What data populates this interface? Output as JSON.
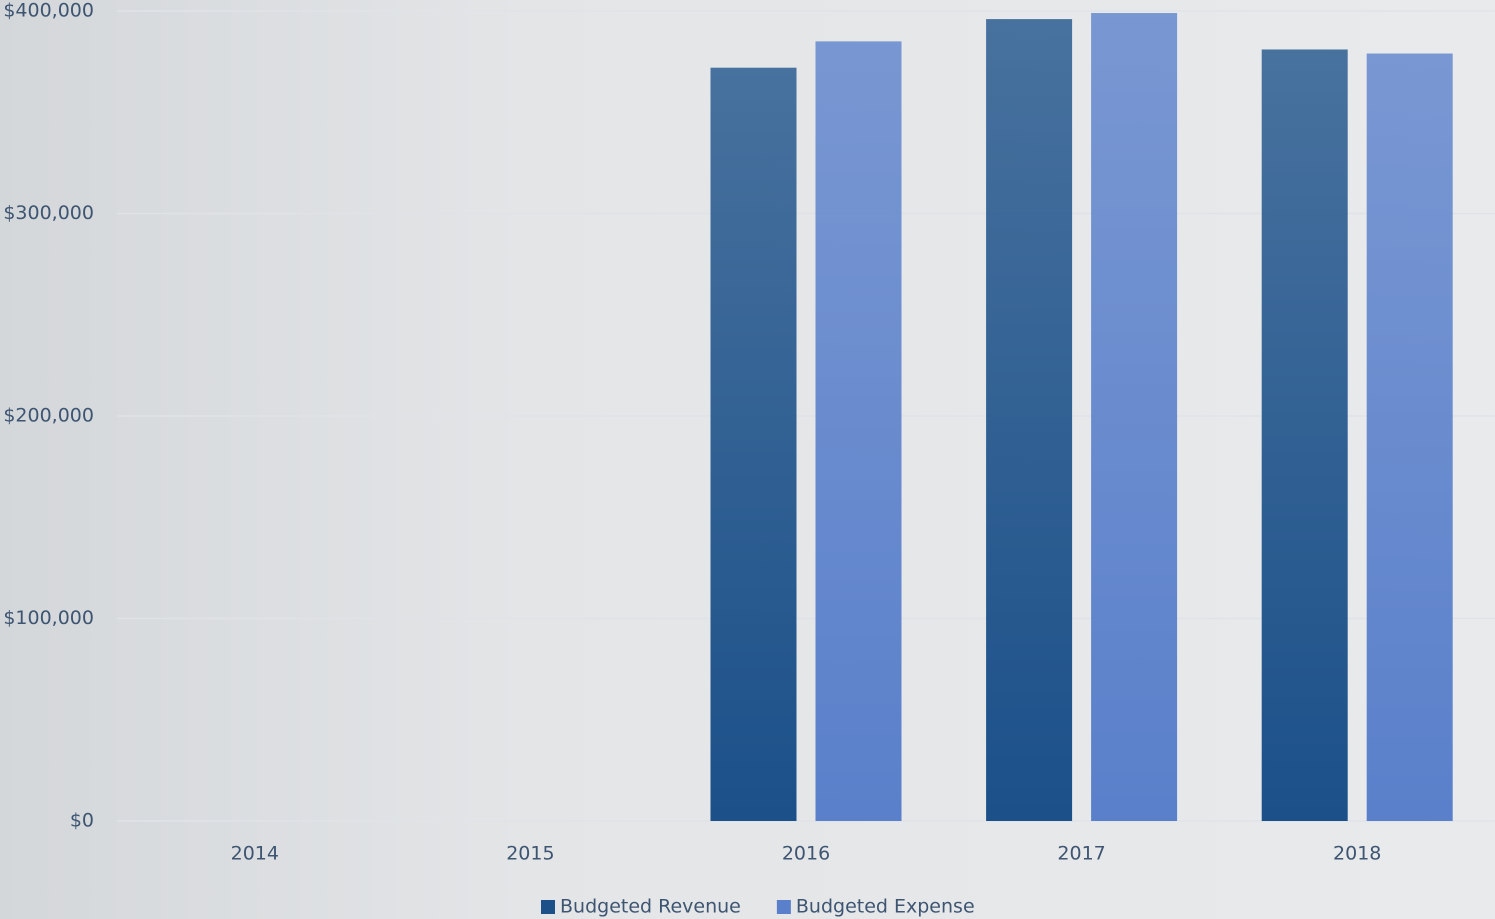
{
  "chart_data": {
    "type": "bar",
    "categories": [
      "2014",
      "2015",
      "2016",
      "2017",
      "2018"
    ],
    "series": [
      {
        "name": "Budgeted Revenue",
        "color": "#1b5089",
        "values": [
          null,
          null,
          372000,
          396000,
          381000
        ]
      },
      {
        "name": "Budgeted Expense",
        "color": "#5a80cb",
        "values": [
          null,
          null,
          385000,
          399000,
          379000
        ]
      }
    ],
    "ylim": [
      0,
      400000
    ],
    "yticks": [
      {
        "value": 0,
        "label": "$0"
      },
      {
        "value": 100000,
        "label": "$100,000"
      },
      {
        "value": 200000,
        "label": "$200,000"
      },
      {
        "value": 300000,
        "label": "$300,000"
      },
      {
        "value": 400000,
        "label": "$400,000"
      }
    ],
    "grid": true,
    "legend": "bottom"
  }
}
